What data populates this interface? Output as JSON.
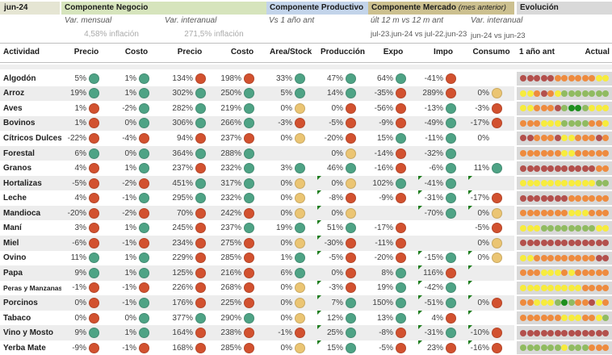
{
  "header": {
    "date": "jun-24",
    "negocio": {
      "title": "Componente Negocio",
      "sub_mensual": "Var. mensual",
      "sub_interanual": "Var. interanual",
      "inflacion_mensual": "4,58% inflación",
      "inflacion_interanual": "271,5% inflación"
    },
    "productivo": {
      "title": "Componente Productivo",
      "sub": "Vs 1 año ant"
    },
    "mercado": {
      "title": "Componente Mercado",
      "title_note": "(mes anterior)",
      "sub": "últ 12 m vs 12 m ant",
      "period": "jul-23.jun-24 vs jul-22.jun-23",
      "sub2": "Var. interanual",
      "period2": "jun-24 vs jun-23"
    },
    "evolucion": {
      "title": "Evolución",
      "col_left": "1 año ant",
      "col_right": "Actual"
    }
  },
  "columns": [
    "Actividad",
    "Precio",
    "Costo",
    "Precio",
    "Costo",
    "Area/Stock",
    "Producción",
    "Expo",
    "Impo",
    "Consumo"
  ],
  "column_keys": [
    "precio-mensual",
    "costo-mensual",
    "precio-interanual",
    "costo-interanual",
    "area-stock",
    "produccion",
    "expo",
    "impo",
    "consumo"
  ],
  "colors": {
    "circle": {
      "g": "#4ea385",
      "r": "#d2512f",
      "y": "#ebc573"
    },
    "evo": {
      "dr": "#b3504c",
      "or": "#ee8b3e",
      "ye": "#f7ec3c",
      "lg": "#90bb61",
      "dg": "#1e8f1e"
    },
    "bands": {
      "negocio": "#d6e4bc",
      "productivo": "#c3d4ea",
      "mercado": "#ccc08f",
      "evolucion": "#d9d9d9",
      "date": "#e5e5d3"
    },
    "comment_triangle": "#1e7e1e",
    "row_stripe": "#ededed"
  },
  "rows": [
    {
      "a": "Algodón",
      "c": [
        [
          "5%",
          "g"
        ],
        [
          "1%",
          "g"
        ],
        [
          "134%",
          "r"
        ],
        [
          "198%",
          "r"
        ],
        [
          "33%",
          "g"
        ],
        [
          "47%",
          "g"
        ],
        [
          "64%",
          "g"
        ],
        [
          "-41%",
          "r"
        ],
        null
      ],
      "tri": [],
      "evo": [
        "dr",
        "dr",
        "dr",
        "dr",
        "dr",
        "or",
        "or",
        "or",
        "or",
        "or",
        "or",
        "ye",
        "ye"
      ]
    },
    {
      "a": "Arroz",
      "c": [
        [
          "19%",
          "g"
        ],
        [
          "1%",
          "g"
        ],
        [
          "302%",
          "g"
        ],
        [
          "250%",
          "g"
        ],
        [
          "5%",
          "g"
        ],
        [
          "14%",
          "g"
        ],
        [
          "-35%",
          "r"
        ],
        [
          "289%",
          "r"
        ],
        [
          "0%",
          "y"
        ]
      ],
      "tri": [],
      "evo": [
        "ye",
        "ye",
        "or",
        "dr",
        "or",
        "ye",
        "lg",
        "lg",
        "lg",
        "lg",
        "lg",
        "lg",
        "lg"
      ]
    },
    {
      "a": "Aves",
      "c": [
        [
          "1%",
          "r"
        ],
        [
          "-2%",
          "g"
        ],
        [
          "282%",
          "g"
        ],
        [
          "219%",
          "g"
        ],
        [
          "0%",
          "y"
        ],
        [
          "0%",
          "r"
        ],
        [
          "-56%",
          "r"
        ],
        [
          "-13%",
          "g"
        ],
        [
          "-3%",
          "r"
        ]
      ],
      "tri": [],
      "evo": [
        "ye",
        "ye",
        "or",
        "or",
        "or",
        "dr",
        "lg",
        "dg",
        "dg",
        "lg",
        "ye",
        "ye",
        "ye"
      ]
    },
    {
      "a": "Bovinos",
      "c": [
        [
          "1%",
          "r"
        ],
        [
          "0%",
          "g"
        ],
        [
          "306%",
          "g"
        ],
        [
          "266%",
          "g"
        ],
        [
          "-3%",
          "r"
        ],
        [
          "-5%",
          "r"
        ],
        [
          "-9%",
          "r"
        ],
        [
          "-49%",
          "g"
        ],
        [
          "-17%",
          "r"
        ]
      ],
      "tri": [],
      "evo": [
        "or",
        "or",
        "or",
        "ye",
        "ye",
        "ye",
        "lg",
        "lg",
        "lg",
        "lg",
        "or",
        "or",
        "ye"
      ]
    },
    {
      "a": "Cítricos Dulces",
      "c": [
        [
          "-22%",
          "r"
        ],
        [
          "-4%",
          "r"
        ],
        [
          "94%",
          "r"
        ],
        [
          "237%",
          "r"
        ],
        [
          "0%",
          "y"
        ],
        [
          "-20%",
          "r"
        ],
        [
          "15%",
          "g"
        ],
        [
          "-11%",
          "g"
        ],
        [
          "0%",
          "none"
        ]
      ],
      "tri": [],
      "evo": [
        "dr",
        "dr",
        "or",
        "or",
        "or",
        "dr",
        "ye",
        "ye",
        "or",
        "or",
        "or",
        "dr",
        "or"
      ]
    },
    {
      "a": "Forestal",
      "c": [
        [
          "6%",
          "g"
        ],
        [
          "0%",
          "g"
        ],
        [
          "364%",
          "g"
        ],
        [
          "288%",
          "g"
        ],
        null,
        [
          "0%",
          "y"
        ],
        [
          "-14%",
          "r"
        ],
        [
          "-32%",
          "g"
        ],
        null
      ],
      "tri": [],
      "evo": [
        "or",
        "or",
        "or",
        "or",
        "or",
        "or",
        "ye",
        "ye",
        "or",
        "or",
        "or",
        "or",
        "or"
      ]
    },
    {
      "a": "Granos",
      "c": [
        [
          "4%",
          "r"
        ],
        [
          "1%",
          "g"
        ],
        [
          "237%",
          "r"
        ],
        [
          "232%",
          "g"
        ],
        [
          "3%",
          "g"
        ],
        [
          "46%",
          "g"
        ],
        [
          "-16%",
          "r"
        ],
        [
          "-6%",
          "g"
        ],
        [
          "11%",
          "g"
        ]
      ],
      "tri": [],
      "evo": [
        "dr",
        "dr",
        "dr",
        "dr",
        "dr",
        "dr",
        "dr",
        "dr",
        "dr",
        "dr",
        "dr",
        "or",
        "or"
      ]
    },
    {
      "a": "Hortalizas",
      "c": [
        [
          "-5%",
          "r"
        ],
        [
          "-2%",
          "r"
        ],
        [
          "451%",
          "g"
        ],
        [
          "317%",
          "g"
        ],
        [
          "0%",
          "y"
        ],
        [
          "0%",
          "y"
        ],
        [
          "102%",
          "g"
        ],
        [
          "-41%",
          "g"
        ],
        null
      ],
      "tri": [
        5,
        7,
        8
      ],
      "evo": [
        "ye",
        "ye",
        "ye",
        "ye",
        "ye",
        "ye",
        "ye",
        "ye",
        "ye",
        "ye",
        "ye",
        "lg",
        "lg"
      ]
    },
    {
      "a": "Leche",
      "c": [
        [
          "4%",
          "r"
        ],
        [
          "-1%",
          "g"
        ],
        [
          "295%",
          "g"
        ],
        [
          "232%",
          "g"
        ],
        [
          "0%",
          "y"
        ],
        [
          "-8%",
          "r"
        ],
        [
          "-9%",
          "r"
        ],
        [
          "-31%",
          "g"
        ],
        [
          "-17%",
          "r"
        ]
      ],
      "tri": [
        5,
        7,
        8
      ],
      "evo": [
        "dr",
        "dr",
        "dr",
        "dr",
        "dr",
        "dr",
        "dr",
        "or",
        "or",
        "or",
        "or",
        "or",
        "or"
      ]
    },
    {
      "a": "Mandioca",
      "c": [
        [
          "-20%",
          "r"
        ],
        [
          "-2%",
          "r"
        ],
        [
          "70%",
          "r"
        ],
        [
          "242%",
          "r"
        ],
        [
          "0%",
          "y"
        ],
        [
          "0%",
          "y"
        ],
        null,
        [
          "-70%",
          "g"
        ],
        [
          "0%",
          "y"
        ]
      ],
      "tri": [
        5,
        7,
        8
      ],
      "evo": [
        "or",
        "or",
        "or",
        "or",
        "or",
        "or",
        "or",
        "ye",
        "ye",
        "ye",
        "or",
        "or",
        "or"
      ]
    },
    {
      "a": "Maní",
      "c": [
        [
          "3%",
          "r"
        ],
        [
          "1%",
          "g"
        ],
        [
          "245%",
          "r"
        ],
        [
          "237%",
          "g"
        ],
        [
          "19%",
          "g"
        ],
        [
          "51%",
          "g"
        ],
        [
          "-17%",
          "r"
        ],
        null,
        [
          "-5%",
          "r"
        ]
      ],
      "tri": [
        5
      ],
      "evo": [
        "ye",
        "ye",
        "ye",
        "lg",
        "lg",
        "lg",
        "lg",
        "lg",
        "lg",
        "lg",
        "lg",
        "ye",
        "ye"
      ]
    },
    {
      "a": "Miel",
      "c": [
        [
          "-6%",
          "r"
        ],
        [
          "-1%",
          "r"
        ],
        [
          "234%",
          "r"
        ],
        [
          "275%",
          "r"
        ],
        [
          "0%",
          "y"
        ],
        [
          "-30%",
          "r"
        ],
        [
          "-11%",
          "r"
        ],
        null,
        [
          "0%",
          "y"
        ]
      ],
      "tri": [
        5
      ],
      "evo": [
        "dr",
        "dr",
        "dr",
        "dr",
        "dr",
        "dr",
        "dr",
        "dr",
        "dr",
        "dr",
        "dr",
        "dr",
        "dr"
      ]
    },
    {
      "a": "Ovino",
      "c": [
        [
          "11%",
          "g"
        ],
        [
          "1%",
          "g"
        ],
        [
          "229%",
          "r"
        ],
        [
          "285%",
          "r"
        ],
        [
          "1%",
          "g"
        ],
        [
          "-5%",
          "r"
        ],
        [
          "-20%",
          "r"
        ],
        [
          "-15%",
          "g"
        ],
        [
          "0%",
          "y"
        ]
      ],
      "tri": [
        5,
        7,
        8
      ],
      "evo": [
        "ye",
        "ye",
        "or",
        "or",
        "or",
        "or",
        "or",
        "or",
        "or",
        "or",
        "or",
        "dr",
        "dr"
      ]
    },
    {
      "a": "Papa",
      "c": [
        [
          "9%",
          "g"
        ],
        [
          "1%",
          "g"
        ],
        [
          "125%",
          "r"
        ],
        [
          "216%",
          "r"
        ],
        [
          "6%",
          "g"
        ],
        [
          "0%",
          "r"
        ],
        [
          "8%",
          "g"
        ],
        [
          "116%",
          "r"
        ],
        null
      ],
      "tri": [
        7,
        8
      ],
      "evo": [
        "or",
        "or",
        "or",
        "ye",
        "ye",
        "ye",
        "or",
        "ye",
        "or",
        "or",
        "or",
        "or",
        "or"
      ]
    },
    {
      "a": "Peras y Manzanas",
      "c": [
        [
          "-1%",
          "r"
        ],
        [
          "-1%",
          "r"
        ],
        [
          "226%",
          "r"
        ],
        [
          "268%",
          "r"
        ],
        [
          "0%",
          "y"
        ],
        [
          "-3%",
          "r"
        ],
        [
          "19%",
          "g"
        ],
        [
          "-42%",
          "g"
        ],
        null
      ],
      "tri": [
        5,
        7,
        8
      ],
      "evo": [
        "ye",
        "ye",
        "ye",
        "ye",
        "ye",
        "ye",
        "ye",
        "ye",
        "ye",
        "or",
        "or",
        "or",
        "or"
      ]
    },
    {
      "a": "Porcinos",
      "c": [
        [
          "0%",
          "r"
        ],
        [
          "-1%",
          "g"
        ],
        [
          "176%",
          "r"
        ],
        [
          "225%",
          "r"
        ],
        [
          "0%",
          "y"
        ],
        [
          "7%",
          "g"
        ],
        [
          "150%",
          "g"
        ],
        [
          "-51%",
          "g"
        ],
        [
          "0%",
          "r"
        ]
      ],
      "tri": [
        5,
        7,
        8
      ],
      "evo": [
        "or",
        "or",
        "ye",
        "ye",
        "ye",
        "lg",
        "dg",
        "lg",
        "or",
        "or",
        "dr",
        "ye",
        "or"
      ]
    },
    {
      "a": "Tabaco",
      "c": [
        [
          "0%",
          "r"
        ],
        [
          "0%",
          "g"
        ],
        [
          "377%",
          "g"
        ],
        [
          "290%",
          "g"
        ],
        [
          "0%",
          "y"
        ],
        [
          "12%",
          "g"
        ],
        [
          "13%",
          "g"
        ],
        [
          "4%",
          "r"
        ],
        null
      ],
      "tri": [
        5,
        7,
        8
      ],
      "evo": [
        "or",
        "or",
        "or",
        "or",
        "or",
        "or",
        "ye",
        "ye",
        "ye",
        "or",
        "or",
        "ye",
        "lg"
      ]
    },
    {
      "a": "Vino y Mosto",
      "c": [
        [
          "9%",
          "g"
        ],
        [
          "1%",
          "g"
        ],
        [
          "164%",
          "r"
        ],
        [
          "238%",
          "r"
        ],
        [
          "-1%",
          "r"
        ],
        [
          "25%",
          "g"
        ],
        [
          "-8%",
          "r"
        ],
        [
          "-31%",
          "g"
        ],
        [
          "-10%",
          "r"
        ]
      ],
      "tri": [
        5,
        7,
        8
      ],
      "evo": [
        "dr",
        "dr",
        "dr",
        "dr",
        "dr",
        "dr",
        "dr",
        "dr",
        "dr",
        "dr",
        "dr",
        "dr",
        "dr"
      ]
    },
    {
      "a": "Yerba Mate",
      "c": [
        [
          "-9%",
          "r"
        ],
        [
          "-1%",
          "r"
        ],
        [
          "168%",
          "r"
        ],
        [
          "285%",
          "r"
        ],
        [
          "0%",
          "y"
        ],
        [
          "15%",
          "g"
        ],
        [
          "-5%",
          "r"
        ],
        [
          "23%",
          "r"
        ],
        [
          "-16%",
          "r"
        ]
      ],
      "tri": [
        5,
        7,
        8
      ],
      "evo": [
        "lg",
        "lg",
        "lg",
        "lg",
        "lg",
        "lg",
        "ye",
        "lg",
        "lg",
        "lg",
        "or",
        "or",
        "or"
      ]
    }
  ]
}
